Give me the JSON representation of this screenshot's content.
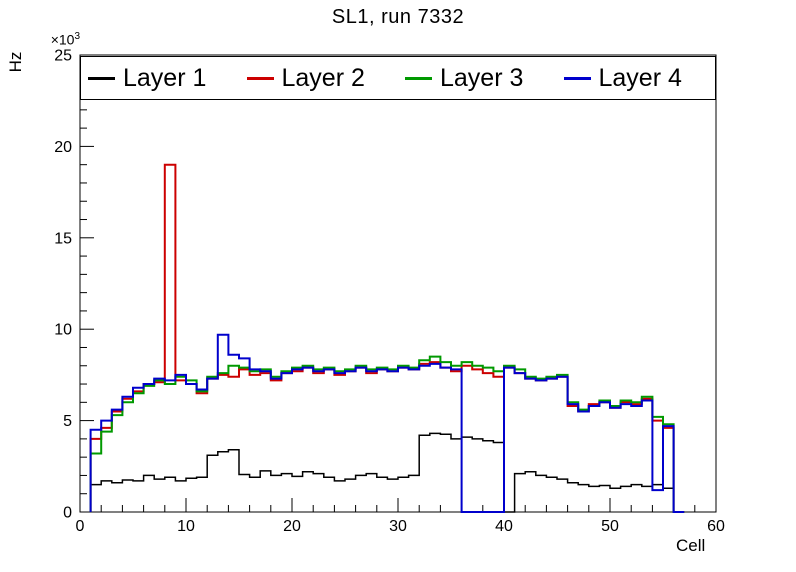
{
  "chart_data": {
    "type": "line",
    "style": "step-histogram",
    "title": "SL1, run 7332",
    "xlabel": "Cell",
    "ylabel": "Hz",
    "y_exponent_base": "×10",
    "y_exponent_power": "3",
    "xlim": [
      0,
      60
    ],
    "ylim": [
      0,
      25000
    ],
    "bins_start": 1,
    "bin_width": 1,
    "grid": false,
    "legend_position": "top",
    "x_major_ticks": [
      0,
      10,
      20,
      30,
      40,
      50,
      60
    ],
    "x_tick_labels": [
      "0",
      "10",
      "20",
      "30",
      "40",
      "50",
      "60"
    ],
    "x_minor_step": 2,
    "y_major_ticks": [
      0,
      5000,
      10000,
      15000,
      20000,
      25000
    ],
    "y_tick_labels": [
      "0",
      "5",
      "10",
      "15",
      "20",
      "25"
    ],
    "y_minor_step": 1000,
    "series": [
      {
        "name": "Layer 1",
        "color": "#000000",
        "line_width": 1.5,
        "values": [
          1500,
          1700,
          1600,
          1750,
          1700,
          2000,
          1800,
          1900,
          1700,
          1850,
          1900,
          3100,
          3300,
          3400,
          2050,
          1900,
          2250,
          2000,
          2100,
          1950,
          2200,
          2100,
          1900,
          1700,
          1800,
          2000,
          2100,
          1900,
          1800,
          1900,
          2000,
          4200,
          4300,
          4250,
          4000,
          4100,
          4000,
          3900,
          3800,
          0,
          2100,
          2200,
          2000,
          1900,
          1800,
          1600,
          1500,
          1400,
          1450,
          1300,
          1400,
          1500,
          1400,
          1500,
          1300,
          0
        ]
      },
      {
        "name": "Layer 2",
        "color": "#cc0000",
        "line_width": 2,
        "values": [
          4000,
          4600,
          5500,
          6200,
          6600,
          7000,
          7100,
          19000,
          7200,
          7000,
          6500,
          7300,
          7500,
          7400,
          7800,
          7500,
          7600,
          7200,
          7600,
          7700,
          7900,
          7600,
          7800,
          7500,
          7700,
          7900,
          7600,
          7800,
          7700,
          7900,
          7800,
          8100,
          8200,
          7900,
          7700,
          8000,
          7800,
          7600,
          7400,
          7900,
          7600,
          7300,
          7200,
          7300,
          7400,
          5800,
          5500,
          5900,
          6000,
          5700,
          6000,
          5900,
          6200,
          5000,
          4600,
          0
        ]
      },
      {
        "name": "Layer 3",
        "color": "#009900",
        "line_width": 2,
        "values": [
          3200,
          4400,
          5300,
          6000,
          6500,
          6900,
          7200,
          7000,
          7400,
          7200,
          6600,
          7400,
          7600,
          8000,
          7900,
          7700,
          7800,
          7400,
          7700,
          7900,
          8000,
          7800,
          7900,
          7700,
          7800,
          8000,
          7800,
          7900,
          7800,
          8000,
          7900,
          8300,
          8500,
          8200,
          8000,
          8200,
          8000,
          7900,
          7700,
          8000,
          7800,
          7400,
          7300,
          7400,
          7500,
          6000,
          5600,
          5800,
          6100,
          5800,
          6100,
          6000,
          6300,
          5200,
          4800,
          0
        ]
      },
      {
        "name": "Layer 4",
        "color": "#0000cc",
        "line_width": 2,
        "values": [
          4500,
          5000,
          5600,
          6300,
          6800,
          7000,
          7300,
          7200,
          7500,
          7000,
          6700,
          7300,
          9700,
          8600,
          8400,
          7800,
          7700,
          7300,
          7600,
          7800,
          7900,
          7700,
          7800,
          7600,
          7700,
          7900,
          7700,
          7800,
          7700,
          7900,
          7800,
          8000,
          8100,
          7900,
          7800,
          0,
          0,
          0,
          0,
          7900,
          7600,
          7300,
          7200,
          7300,
          7400,
          5900,
          5500,
          5800,
          6000,
          5700,
          5900,
          5800,
          6100,
          1200,
          4700,
          0
        ]
      }
    ]
  }
}
